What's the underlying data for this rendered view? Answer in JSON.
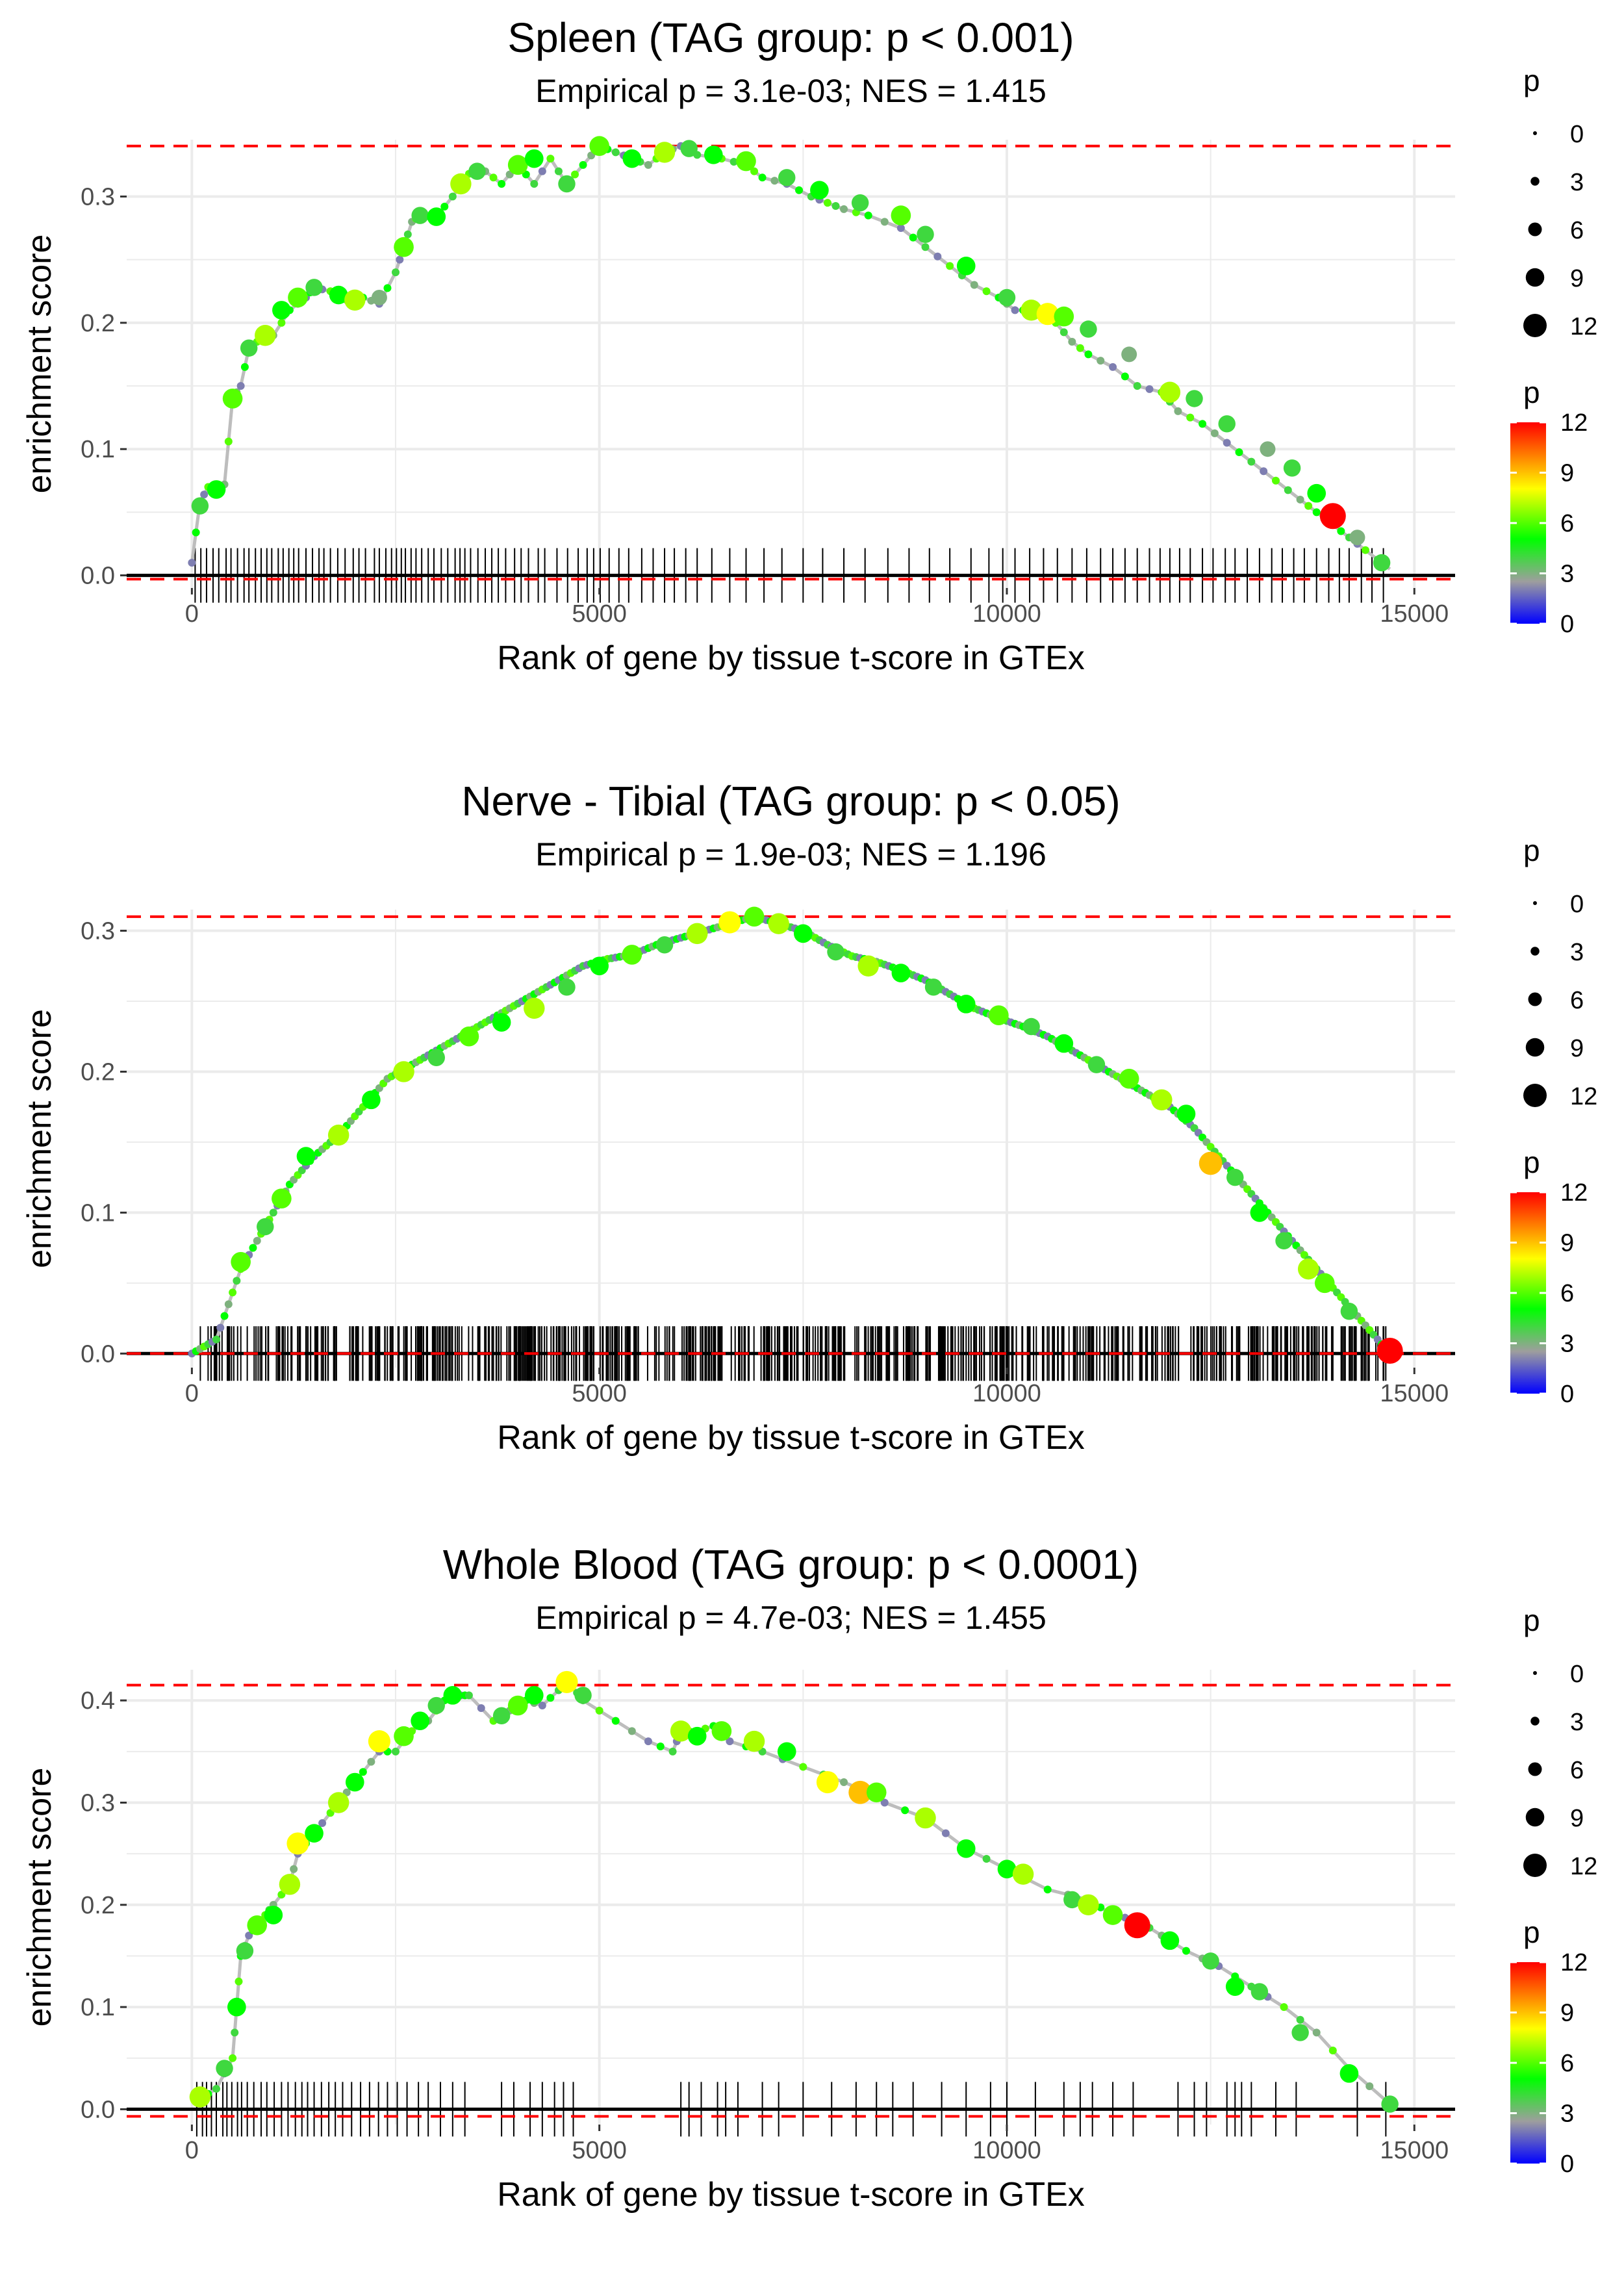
{
  "colors": {
    "curve": "#bdbdbd",
    "max_line": "#ff0000",
    "zero_line": "#000000",
    "gridline": "#ebebeb",
    "hit_tick": "#000000",
    "gradient": [
      "#0000ff",
      "#9e9e9e",
      "#00ff00",
      "#ffff00",
      "#ff0000"
    ]
  },
  "chart_data": [
    {
      "type": "line",
      "title": "Spleen (TAG group: p < 0.001)",
      "subtitle": "Empirical p = 3.1e-03; NES = 1.415",
      "xlabel": "Rank of gene by tissue t-score in GTEx",
      "ylabel": "enrichment score",
      "xlim": [
        -800,
        15500
      ],
      "ylim": [
        -0.01,
        0.345
      ],
      "x_ticks": [
        0,
        5000,
        10000,
        15000
      ],
      "y_ticks": [
        0.0,
        0.1,
        0.2,
        0.3
      ],
      "max_es": 0.34,
      "min_es": -0.003,
      "curve": {
        "x": [
          0,
          100,
          200,
          400,
          500,
          600,
          700,
          800,
          1000,
          1200,
          1400,
          1500,
          1700,
          1900,
          2100,
          2300,
          2500,
          2600,
          2700,
          2800,
          3000,
          3200,
          3400,
          3600,
          3800,
          4000,
          4200,
          4400,
          4600,
          4800,
          5000,
          5200,
          5400,
          5600,
          5800,
          6000,
          6200,
          6500,
          6800,
          7000,
          7300,
          7600,
          7800,
          8000,
          8300,
          8700,
          9000,
          9300,
          9600,
          9900,
          10100,
          10300,
          10600,
          10800,
          11000,
          11300,
          11600,
          11900,
          12100,
          12400,
          12700,
          13000,
          13300,
          13600,
          13800,
          14000,
          14200,
          14400,
          14700
        ],
        "y": [
          0.01,
          0.058,
          0.07,
          0.072,
          0.14,
          0.15,
          0.18,
          0.185,
          0.19,
          0.21,
          0.22,
          0.228,
          0.225,
          0.218,
          0.22,
          0.215,
          0.24,
          0.26,
          0.28,
          0.285,
          0.284,
          0.3,
          0.318,
          0.32,
          0.31,
          0.325,
          0.31,
          0.33,
          0.31,
          0.325,
          0.34,
          0.335,
          0.33,
          0.325,
          0.335,
          0.34,
          0.333,
          0.33,
          0.325,
          0.315,
          0.31,
          0.3,
          0.295,
          0.29,
          0.285,
          0.275,
          0.26,
          0.245,
          0.23,
          0.22,
          0.21,
          0.21,
          0.2,
          0.185,
          0.175,
          0.165,
          0.15,
          0.145,
          0.13,
          0.12,
          0.105,
          0.09,
          0.075,
          0.06,
          0.05,
          0.04,
          0.03,
          0.02,
          0.005
        ]
      },
      "points": {
        "x": [
          100,
          300,
          500,
          700,
          900,
          1100,
          1300,
          1500,
          1800,
          2000,
          2300,
          2600,
          2800,
          3000,
          3300,
          3500,
          4000,
          4200,
          4600,
          5000,
          5400,
          5800,
          6100,
          6400,
          6800,
          7300,
          7700,
          8200,
          8700,
          9000,
          9500,
          10000,
          10300,
          10500,
          10700,
          11000,
          11500,
          12000,
          12300,
          12700,
          13200,
          13500,
          13800,
          14000,
          14300,
          14600
        ],
        "y": [
          0.055,
          0.068,
          0.14,
          0.18,
          0.19,
          0.21,
          0.22,
          0.228,
          0.222,
          0.218,
          0.22,
          0.26,
          0.285,
          0.284,
          0.31,
          0.32,
          0.325,
          0.33,
          0.31,
          0.34,
          0.33,
          0.335,
          0.338,
          0.333,
          0.328,
          0.315,
          0.305,
          0.295,
          0.285,
          0.27,
          0.245,
          0.22,
          0.21,
          0.207,
          0.205,
          0.195,
          0.175,
          0.145,
          0.14,
          0.12,
          0.1,
          0.085,
          0.065,
          0.047,
          0.03,
          0.01
        ],
        "p": [
          4,
          5,
          6,
          4,
          7,
          5,
          6,
          4,
          5,
          7,
          3,
          6,
          4,
          5,
          7,
          4,
          6,
          5,
          4,
          6,
          5,
          7,
          4,
          5,
          6,
          4,
          5,
          4,
          6,
          4,
          5,
          4,
          7,
          8,
          6,
          4,
          3,
          7,
          4,
          4,
          3,
          4,
          5,
          12,
          3,
          4
        ]
      },
      "hits": [
        40,
        110,
        180,
        260,
        330,
        420,
        480,
        560,
        640,
        700,
        780,
        850,
        920,
        980,
        1060,
        1120,
        1190,
        1250,
        1310,
        1400,
        1480,
        1560,
        1620,
        1700,
        1790,
        1880,
        1980,
        2050,
        2130,
        2240,
        2300,
        2380,
        2450,
        2510,
        2570,
        2620,
        2690,
        2750,
        2820,
        2900,
        2970,
        3060,
        3140,
        3230,
        3290,
        3350,
        3420,
        3510,
        3600,
        3680,
        3760,
        3850,
        3960,
        4040,
        4130,
        4250,
        4330,
        4480,
        4610,
        4740,
        4850,
        4930,
        5010,
        5120,
        5240,
        5360,
        5520,
        5660,
        5800,
        5920,
        6060,
        6200,
        6380,
        6600,
        6800,
        7020,
        7240,
        7500,
        7740,
        8000,
        8260,
        8540,
        8800,
        9050,
        9300,
        9560,
        9780,
        9950,
        10100,
        10280,
        10450,
        10620,
        10800,
        10980,
        11150,
        11300,
        11450,
        11600,
        11750,
        11880,
        12000,
        12120,
        12250,
        12400,
        12530,
        12680,
        12800,
        12950,
        13100,
        13250,
        13380,
        13520,
        13650,
        13800,
        13950,
        14080,
        14200,
        14350,
        14480,
        14620
      ]
    },
    {
      "type": "line",
      "title": "Nerve - Tibial (TAG group: p < 0.05)",
      "subtitle": "Empirical p = 1.9e-03; NES = 1.196",
      "xlabel": "Rank of gene by tissue t-score in GTEx",
      "ylabel": "enrichment score",
      "xlim": [
        -800,
        15500
      ],
      "ylim": [
        -0.01,
        0.315
      ],
      "x_ticks": [
        0,
        5000,
        10000,
        15000
      ],
      "y_ticks": [
        0.0,
        0.1,
        0.2,
        0.3
      ],
      "max_es": 0.31,
      "min_es": 0.0,
      "curve": {
        "x": [
          0,
          300,
          600,
          900,
          1200,
          1500,
          1800,
          2100,
          2400,
          2700,
          3000,
          3300,
          3600,
          3900,
          4200,
          4500,
          4800,
          5100,
          5400,
          5700,
          6000,
          6300,
          6600,
          6900,
          7200,
          7500,
          7800,
          8100,
          8400,
          8700,
          9000,
          9300,
          9600,
          9900,
          10200,
          10500,
          10800,
          11100,
          11400,
          11700,
          12000,
          12300,
          12600,
          12900,
          13200,
          13500,
          13800,
          14100,
          14400,
          14700
        ],
        "y": [
          0.0,
          0.01,
          0.06,
          0.09,
          0.12,
          0.14,
          0.155,
          0.175,
          0.195,
          0.205,
          0.215,
          0.225,
          0.235,
          0.245,
          0.255,
          0.265,
          0.275,
          0.28,
          0.283,
          0.29,
          0.295,
          0.3,
          0.305,
          0.31,
          0.305,
          0.3,
          0.29,
          0.282,
          0.278,
          0.272,
          0.265,
          0.255,
          0.245,
          0.238,
          0.232,
          0.225,
          0.215,
          0.205,
          0.195,
          0.185,
          0.175,
          0.16,
          0.14,
          0.12,
          0.1,
          0.08,
          0.06,
          0.04,
          0.02,
          0.0
        ]
      },
      "points": {
        "x": [
          600,
          900,
          1100,
          1400,
          1800,
          2200,
          2600,
          3000,
          3400,
          3800,
          4200,
          4600,
          5000,
          5400,
          5800,
          6200,
          6600,
          6900,
          7200,
          7500,
          7900,
          8300,
          8700,
          9100,
          9500,
          9900,
          10300,
          10700,
          11100,
          11500,
          11900,
          12200,
          12500,
          12800,
          13100,
          13400,
          13700,
          13900,
          14200,
          14700
        ],
        "y": [
          0.065,
          0.09,
          0.11,
          0.14,
          0.155,
          0.18,
          0.2,
          0.21,
          0.225,
          0.235,
          0.245,
          0.26,
          0.275,
          0.283,
          0.29,
          0.298,
          0.306,
          0.31,
          0.305,
          0.298,
          0.285,
          0.275,
          0.27,
          0.26,
          0.248,
          0.24,
          0.232,
          0.22,
          0.205,
          0.195,
          0.18,
          0.17,
          0.135,
          0.125,
          0.1,
          0.08,
          0.06,
          0.05,
          0.03,
          0.002
        ],
        "p": [
          6,
          4,
          6,
          5,
          7,
          5,
          7,
          4,
          6,
          5,
          7,
          4,
          5,
          6,
          4,
          7,
          8,
          6,
          7,
          5,
          4,
          7,
          5,
          4,
          5,
          6,
          4,
          5,
          4,
          6,
          7,
          5,
          9,
          4,
          5,
          4,
          7,
          6,
          4,
          12
        ]
      },
      "hits_dense": true,
      "hits_range": [
        100,
        14650
      ],
      "hits_count": 650
    },
    {
      "type": "line",
      "title": "Whole Blood (TAG group: p < 0.0001)",
      "subtitle": "Empirical p = 4.7e-03; NES = 1.455",
      "xlabel": "Rank of gene by tissue t-score in GTEx",
      "ylabel": "enrichment score",
      "xlim": [
        -800,
        15500
      ],
      "ylim": [
        -0.015,
        0.43
      ],
      "x_ticks": [
        0,
        5000,
        10000,
        15000
      ],
      "y_ticks": [
        0.0,
        0.1,
        0.2,
        0.3,
        0.4
      ],
      "max_es": 0.415,
      "min_es": -0.007,
      "curve": {
        "x": [
          100,
          300,
          500,
          550,
          600,
          700,
          800,
          900,
          1000,
          1200,
          1300,
          1500,
          1700,
          1900,
          2100,
          2300,
          2500,
          2700,
          2900,
          3100,
          3300,
          3400,
          3700,
          3900,
          4100,
          4300,
          4500,
          4650,
          4800,
          5200,
          5600,
          5900,
          6000,
          6200,
          6400,
          6600,
          7000,
          7500,
          8000,
          8300,
          8500,
          9000,
          9500,
          10000,
          10500,
          11000,
          11300,
          11600,
          11900,
          12200,
          12600,
          13000,
          13400,
          13800,
          14200,
          14700
        ],
        "y": [
          0.01,
          0.02,
          0.05,
          0.1,
          0.15,
          0.17,
          0.18,
          0.19,
          0.2,
          0.22,
          0.25,
          0.27,
          0.29,
          0.31,
          0.33,
          0.35,
          0.35,
          0.37,
          0.38,
          0.4,
          0.405,
          0.405,
          0.38,
          0.39,
          0.4,
          0.395,
          0.41,
          0.415,
          0.4,
          0.38,
          0.36,
          0.35,
          0.37,
          0.37,
          0.375,
          0.36,
          0.35,
          0.335,
          0.32,
          0.31,
          0.3,
          0.285,
          0.255,
          0.235,
          0.215,
          0.205,
          0.19,
          0.185,
          0.17,
          0.155,
          0.14,
          0.12,
          0.1,
          0.075,
          0.04,
          0.005
        ]
      },
      "points": {
        "x": [
          100,
          400,
          550,
          650,
          800,
          1000,
          1200,
          1300,
          1500,
          1800,
          2000,
          2300,
          2600,
          2800,
          3000,
          3200,
          3800,
          4000,
          4200,
          4600,
          4800,
          6000,
          6200,
          6500,
          6900,
          7300,
          7800,
          8200,
          8400,
          9000,
          9500,
          10000,
          10200,
          10800,
          11000,
          11300,
          11600,
          12000,
          12500,
          12800,
          13100,
          13600,
          14200,
          14700
        ],
        "y": [
          0.012,
          0.04,
          0.1,
          0.155,
          0.18,
          0.19,
          0.22,
          0.26,
          0.27,
          0.3,
          0.32,
          0.36,
          0.365,
          0.38,
          0.395,
          0.405,
          0.385,
          0.395,
          0.405,
          0.418,
          0.405,
          0.37,
          0.365,
          0.37,
          0.36,
          0.35,
          0.32,
          0.31,
          0.31,
          0.285,
          0.255,
          0.235,
          0.23,
          0.205,
          0.2,
          0.19,
          0.18,
          0.165,
          0.145,
          0.12,
          0.115,
          0.075,
          0.035,
          0.005
        ],
        "p": [
          7,
          4,
          5,
          4,
          6,
          5,
          7,
          8,
          5,
          7,
          5,
          8,
          6,
          5,
          4,
          5,
          4,
          6,
          5,
          8,
          4,
          7,
          5,
          6,
          7,
          5,
          8,
          9,
          6,
          7,
          5,
          5,
          7,
          4,
          7,
          6,
          12,
          5,
          4,
          5,
          4,
          4,
          5,
          4
        ]
      },
      "hits": [
        60,
        130,
        180,
        240,
        300,
        380,
        430,
        490,
        560,
        610,
        680,
        760,
        850,
        920,
        1010,
        1100,
        1180,
        1270,
        1350,
        1420,
        1500,
        1590,
        1680,
        1760,
        1850,
        1960,
        2070,
        2180,
        2290,
        2400,
        2520,
        2640,
        2780,
        2900,
        3050,
        3200,
        3350,
        3800,
        3950,
        4150,
        4300,
        4450,
        4560,
        4680,
        6000,
        6100,
        6250,
        6450,
        6550,
        6700,
        7000,
        7200,
        7500,
        7850,
        8150,
        8400,
        8600,
        8850,
        9200,
        9500,
        9800,
        10000,
        10350,
        10700,
        10900,
        11050,
        11300,
        11550,
        12100,
        12300,
        12450,
        12700,
        12800,
        12880,
        13000,
        13300,
        13550,
        14300,
        14650
      ]
    }
  ],
  "legend": {
    "size_title": "p",
    "size_entries": [
      "0",
      "3",
      "6",
      "9",
      "12"
    ],
    "color_title": "p",
    "color_ticks": [
      "12",
      "9",
      "6",
      "3",
      "0"
    ]
  }
}
